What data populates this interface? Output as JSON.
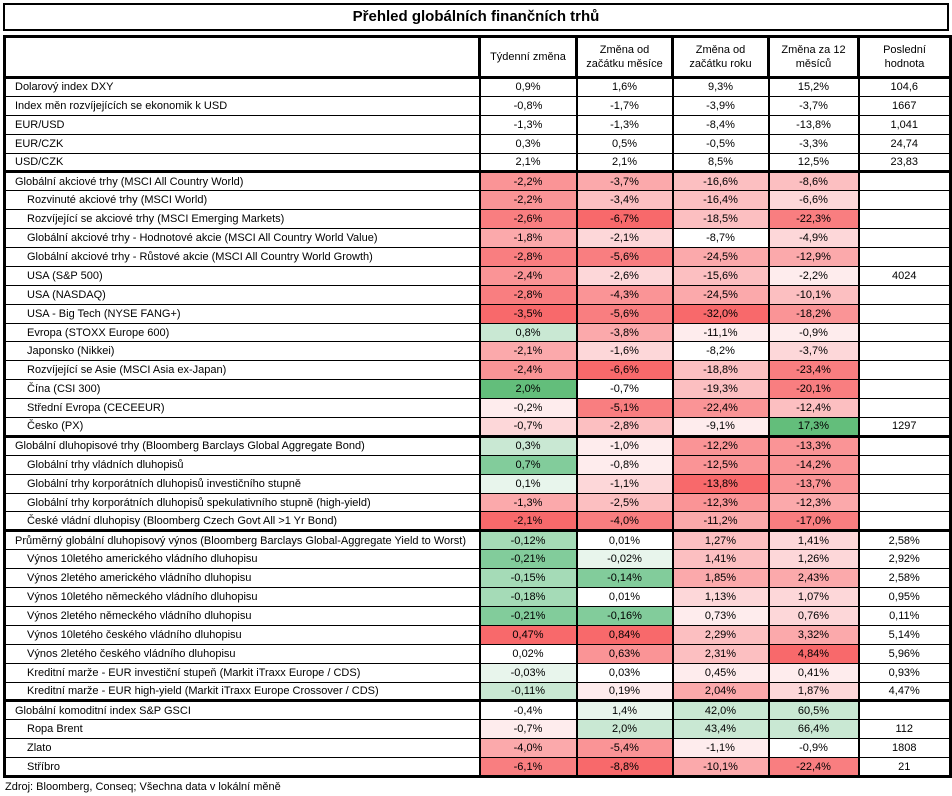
{
  "title": "Přehled globálních finančních trhů",
  "footer": "Zdroj: Bloomberg, Conseq; Všechna data v lokální měně",
  "columns": [
    "",
    "Týdenní změna",
    "Změna od začátku měsíce",
    "Změna od začátku roku",
    "Změna za 12 měsíců",
    "Poslední hodnota"
  ],
  "palette": {
    "R5": "#F8696B",
    "R4": "#F97E80",
    "R3": "#FA9496",
    "R2": "#FBA9AB",
    "R1": "#FCBFC1",
    "P2": "#FDD7D9",
    "P1": "#FEECED",
    "W": "#FFFFFF",
    "G1": "#E8F5EC",
    "G2": "#C9E8D3",
    "G3": "#A5DBB7",
    "G4": "#82CC9B",
    "G5": "#63BE7B"
  },
  "rows": [
    {
      "label": "Dolarový index DXY",
      "indent": false,
      "section": false,
      "values": [
        "0,9%",
        "1,6%",
        "9,3%",
        "15,2%",
        "104,6"
      ],
      "colors": [
        "W",
        "W",
        "W",
        "W"
      ]
    },
    {
      "label": "Index měn rozvíjejících se ekonomik k USD",
      "indent": false,
      "section": false,
      "values": [
        "-0,8%",
        "-1,7%",
        "-3,9%",
        "-3,7%",
        "1667"
      ],
      "colors": [
        "W",
        "W",
        "W",
        "W"
      ]
    },
    {
      "label": "EUR/USD",
      "indent": false,
      "section": false,
      "values": [
        "-1,3%",
        "-1,3%",
        "-8,4%",
        "-13,8%",
        "1,041"
      ],
      "colors": [
        "W",
        "W",
        "W",
        "W"
      ]
    },
    {
      "label": "EUR/CZK",
      "indent": false,
      "section": false,
      "values": [
        "0,3%",
        "0,5%",
        "-0,5%",
        "-3,3%",
        "24,74"
      ],
      "colors": [
        "W",
        "W",
        "W",
        "W"
      ]
    },
    {
      "label": "USD/CZK",
      "indent": false,
      "section": false,
      "values": [
        "2,1%",
        "2,1%",
        "8,5%",
        "12,5%",
        "23,83"
      ],
      "colors": [
        "W",
        "W",
        "W",
        "W"
      ]
    },
    {
      "label": "Globální akciové trhy (MSCI All Country World)",
      "indent": false,
      "section": true,
      "values": [
        "-2,2%",
        "-3,7%",
        "-16,6%",
        "-8,6%",
        ""
      ],
      "colors": [
        "R3",
        "R2",
        "R1",
        "R1"
      ]
    },
    {
      "label": "Rozvinuté akciové trhy (MSCI World)",
      "indent": true,
      "section": false,
      "values": [
        "-2,2%",
        "-3,4%",
        "-16,4%",
        "-6,6%",
        ""
      ],
      "colors": [
        "R3",
        "R1",
        "R1",
        "P2"
      ]
    },
    {
      "label": "Rozvíjející se akciové trhy (MSCI Emerging Markets)",
      "indent": true,
      "section": false,
      "values": [
        "-2,6%",
        "-6,7%",
        "-18,5%",
        "-22,3%",
        ""
      ],
      "colors": [
        "R4",
        "R5",
        "R1",
        "R4"
      ]
    },
    {
      "label": "Globální akciové trhy - Hodnotové akcie (MSCI All Country World Value)",
      "indent": true,
      "section": false,
      "values": [
        "-1,8%",
        "-2,1%",
        "-8,7%",
        "-4,9%",
        ""
      ],
      "colors": [
        "R2",
        "P2",
        "W",
        "P2"
      ]
    },
    {
      "label": "Globální akciové trhy - Růstové akcie (MSCI All Country World Growth)",
      "indent": true,
      "section": false,
      "values": [
        "-2,8%",
        "-5,6%",
        "-24,5%",
        "-12,9%",
        ""
      ],
      "colors": [
        "R4",
        "R4",
        "R2",
        "R2"
      ]
    },
    {
      "label": "USA (S&P 500)",
      "indent": true,
      "section": false,
      "values": [
        "-2,4%",
        "-2,6%",
        "-15,6%",
        "-2,2%",
        "4024"
      ],
      "colors": [
        "R3",
        "P2",
        "R1",
        "P1"
      ]
    },
    {
      "label": "USA (NASDAQ)",
      "indent": true,
      "section": false,
      "values": [
        "-2,8%",
        "-4,3%",
        "-24,5%",
        "-10,1%",
        ""
      ],
      "colors": [
        "R4",
        "R3",
        "R2",
        "R1"
      ]
    },
    {
      "label": "USA - Big Tech (NYSE FANG+)",
      "indent": true,
      "section": false,
      "values": [
        "-3,5%",
        "-5,6%",
        "-32,0%",
        "-18,2%",
        ""
      ],
      "colors": [
        "R5",
        "R4",
        "R5",
        "R3"
      ]
    },
    {
      "label": "Evropa (STOXX Europe 600)",
      "indent": true,
      "section": false,
      "values": [
        "0,8%",
        "-3,8%",
        "-11,1%",
        "-0,9%",
        ""
      ],
      "colors": [
        "G2",
        "R2",
        "P1",
        "P1"
      ]
    },
    {
      "label": "Japonsko (Nikkei)",
      "indent": true,
      "section": false,
      "values": [
        "-2,1%",
        "-1,6%",
        "-8,2%",
        "-3,7%",
        ""
      ],
      "colors": [
        "R2",
        "P2",
        "W",
        "P2"
      ]
    },
    {
      "label": "Rozvíjející se Asie (MSCI Asia ex-Japan)",
      "indent": true,
      "section": false,
      "values": [
        "-2,4%",
        "-6,6%",
        "-18,8%",
        "-23,4%",
        ""
      ],
      "colors": [
        "R3",
        "R5",
        "R1",
        "R4"
      ]
    },
    {
      "label": "Čína (CSI 300)",
      "indent": true,
      "section": false,
      "values": [
        "2,0%",
        "-0,7%",
        "-19,3%",
        "-20,1%",
        ""
      ],
      "colors": [
        "G5",
        "W",
        "R1",
        "R4"
      ]
    },
    {
      "label": "Střední Evropa (CECEEUR)",
      "indent": true,
      "section": false,
      "values": [
        "-0,2%",
        "-5,1%",
        "-22,4%",
        "-12,4%",
        ""
      ],
      "colors": [
        "P1",
        "R4",
        "R3",
        "R1"
      ]
    },
    {
      "label": "Česko (PX)",
      "indent": true,
      "section": false,
      "values": [
        "-0,7%",
        "-2,8%",
        "-9,1%",
        "17,3%",
        "1297"
      ],
      "colors": [
        "P2",
        "R1",
        "P1",
        "G5"
      ]
    },
    {
      "label": "Globální dluhopisové trhy (Bloomberg Barclays Global Aggregate Bond)",
      "indent": false,
      "section": true,
      "values": [
        "0,3%",
        "-1,0%",
        "-12,2%",
        "-13,3%",
        ""
      ],
      "colors": [
        "G2",
        "P1",
        "R3",
        "R3"
      ]
    },
    {
      "label": "Globální trhy vládních dluhopisů",
      "indent": true,
      "section": false,
      "values": [
        "0,7%",
        "-0,8%",
        "-12,5%",
        "-14,2%",
        ""
      ],
      "colors": [
        "G4",
        "P1",
        "R3",
        "R3"
      ]
    },
    {
      "label": "Globální trhy korporátních dluhopisů investičního stupně",
      "indent": true,
      "section": false,
      "values": [
        "0,1%",
        "-1,1%",
        "-13,8%",
        "-13,7%",
        ""
      ],
      "colors": [
        "G1",
        "P2",
        "R5",
        "R3"
      ]
    },
    {
      "label": "Globální trhy korporátních dluhopisů spekulativního stupně (high-yield)",
      "indent": true,
      "section": false,
      "values": [
        "-1,3%",
        "-2,5%",
        "-12,3%",
        "-12,3%",
        ""
      ],
      "colors": [
        "R2",
        "R1",
        "R3",
        "R2"
      ]
    },
    {
      "label": "České vládní dluhopisy (Bloomberg Czech Govt All >1 Yr Bond)",
      "indent": true,
      "section": false,
      "values": [
        "-2,1%",
        "-4,0%",
        "-11,2%",
        "-17,0%",
        ""
      ],
      "colors": [
        "R5",
        "R4",
        "R2",
        "R4"
      ]
    },
    {
      "label": "Průměrný globální dluhopisový výnos (Bloomberg Barclays Global-Aggregate Yield to Worst)",
      "indent": false,
      "section": true,
      "values": [
        "-0,12%",
        "0,01%",
        "1,27%",
        "1,41%",
        "2,58%"
      ],
      "colors": [
        "G3",
        "W",
        "R1",
        "P2"
      ]
    },
    {
      "label": "Výnos 10letého amerického vládního dluhopisu",
      "indent": true,
      "section": false,
      "values": [
        "-0,21%",
        "-0,02%",
        "1,41%",
        "1,26%",
        "2,92%"
      ],
      "colors": [
        "G4",
        "G1",
        "R1",
        "P2"
      ]
    },
    {
      "label": "Výnos 2letého amerického vládního dluhopisu",
      "indent": true,
      "section": false,
      "values": [
        "-0,15%",
        "-0,14%",
        "1,85%",
        "2,43%",
        "2,58%"
      ],
      "colors": [
        "G3",
        "G4",
        "R2",
        "R2"
      ]
    },
    {
      "label": "Výnos 10letého německého vládního dluhopisu",
      "indent": true,
      "section": false,
      "values": [
        "-0,18%",
        "0,01%",
        "1,13%",
        "1,07%",
        "0,95%"
      ],
      "colors": [
        "G3",
        "W",
        "P2",
        "P2"
      ]
    },
    {
      "label": "Výnos 2letého německého vládního dluhopisu",
      "indent": true,
      "section": false,
      "values": [
        "-0,21%",
        "-0,16%",
        "0,73%",
        "0,76%",
        "0,11%"
      ],
      "colors": [
        "G4",
        "G4",
        "P1",
        "P2"
      ]
    },
    {
      "label": "Výnos 10letého českého vládního dluhopisu",
      "indent": true,
      "section": false,
      "values": [
        "0,47%",
        "0,84%",
        "2,29%",
        "3,32%",
        "5,14%"
      ],
      "colors": [
        "R5",
        "R5",
        "R1",
        "R2"
      ]
    },
    {
      "label": "Výnos 2letého českého vládního dluhopisu",
      "indent": true,
      "section": false,
      "values": [
        "0,02%",
        "0,63%",
        "2,31%",
        "4,84%",
        "5,96%"
      ],
      "colors": [
        "W",
        "R3",
        "R1",
        "R5"
      ]
    },
    {
      "label": "Kreditní marže - EUR investiční stupeň (Markit iTraxx Europe / CDS)",
      "indent": true,
      "section": false,
      "values": [
        "-0,03%",
        "0,03%",
        "0,45%",
        "0,41%",
        "0,93%"
      ],
      "colors": [
        "G1",
        "W",
        "P1",
        "P1"
      ]
    },
    {
      "label": "Kreditní marže - EUR high-yield (Markit iTraxx Europe Crossover / CDS)",
      "indent": true,
      "section": false,
      "values": [
        "-0,11%",
        "0,19%",
        "2,04%",
        "1,87%",
        "4,47%"
      ],
      "colors": [
        "G2",
        "P1",
        "R2",
        "P2"
      ]
    },
    {
      "label": "Globální komoditní index S&P GSCI",
      "indent": false,
      "section": true,
      "values": [
        "-0,4%",
        "1,4%",
        "42,0%",
        "60,5%",
        ""
      ],
      "colors": [
        "W",
        "G1",
        "G2",
        "G2"
      ]
    },
    {
      "label": "Ropa Brent",
      "indent": true,
      "section": false,
      "values": [
        "-0,7%",
        "2,0%",
        "43,4%",
        "66,4%",
        "112"
      ],
      "colors": [
        "P1",
        "G2",
        "G2",
        "G2"
      ]
    },
    {
      "label": "Zlato",
      "indent": true,
      "section": false,
      "values": [
        "-4,0%",
        "-5,4%",
        "-1,1%",
        "-0,9%",
        "1808"
      ],
      "colors": [
        "R2",
        "R3",
        "P1",
        "W"
      ]
    },
    {
      "label": "Stříbro",
      "indent": true,
      "section": false,
      "values": [
        "-6,1%",
        "-8,8%",
        "-10,1%",
        "-22,4%",
        "21"
      ],
      "colors": [
        "R4",
        "R5",
        "R2",
        "R4"
      ]
    }
  ]
}
